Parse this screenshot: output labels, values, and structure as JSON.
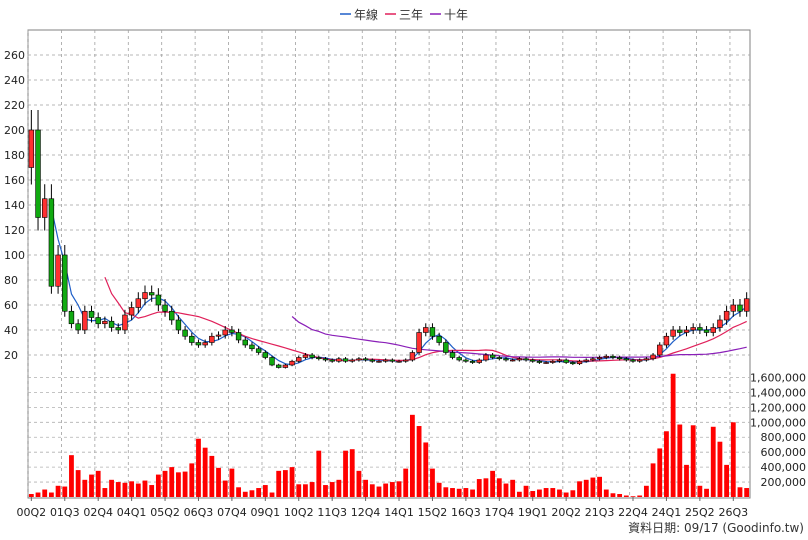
{
  "chart_data": {
    "type": "candlestick",
    "period": "quarterly",
    "legend": {
      "placement": "top-center",
      "items": [
        {
          "label": "年線",
          "color": "#1f5fc8"
        },
        {
          "label": "三年",
          "color": "#e0205a"
        },
        {
          "label": "十年",
          "color": "#8a1fb8"
        }
      ]
    },
    "price_axis": {
      "range": [
        0,
        280
      ],
      "ticks": [
        20,
        40,
        60,
        80,
        100,
        120,
        140,
        160,
        180,
        200,
        220,
        240,
        260
      ],
      "grid": true
    },
    "volume_axis": {
      "range": [
        0,
        1700000
      ],
      "ticks": [
        "200,000",
        "400,000",
        "600,000",
        "800,000",
        "1,000,000",
        "1,200,000",
        "1,400,000",
        "1,600,000"
      ],
      "tick_values": [
        200000,
        400000,
        600000,
        800000,
        1000000,
        1200000,
        1400000,
        1600000
      ]
    },
    "x_tick_labels": [
      "00Q2",
      "01Q3",
      "02Q4",
      "04Q1",
      "05Q2",
      "06Q3",
      "07Q4",
      "09Q1",
      "10Q2",
      "11Q3",
      "12Q4",
      "14Q1",
      "15Q2",
      "16Q3",
      "17Q4",
      "19Q1",
      "20Q2",
      "21Q3",
      "22Q4",
      "24Q1",
      "25Q2",
      "26Q3"
    ],
    "first_quarter": "00Q2",
    "closes": [
      200,
      130,
      145,
      75,
      100,
      55,
      45,
      40,
      55,
      50,
      45,
      47,
      42,
      40,
      52,
      58,
      65,
      70,
      68,
      60,
      55,
      48,
      40,
      35,
      30,
      28,
      30,
      35,
      36,
      40,
      38,
      32,
      28,
      25,
      22,
      18,
      12,
      10,
      12,
      15,
      18,
      20,
      18,
      17,
      16,
      15,
      17,
      15,
      16,
      17,
      16,
      15,
      15,
      16,
      15,
      15,
      16,
      22,
      38,
      42,
      35,
      30,
      22,
      18,
      16,
      15,
      14,
      16,
      20,
      18,
      17,
      16,
      16,
      17,
      16,
      15,
      14,
      14,
      15,
      16,
      14,
      13,
      15,
      16,
      17,
      18,
      19,
      18,
      17,
      16,
      15,
      16,
      17,
      20,
      28,
      35,
      40,
      38,
      40,
      42,
      40,
      38,
      42,
      48,
      55,
      60,
      55,
      65
    ],
    "volumes": [
      40000,
      60000,
      100000,
      60000,
      150000,
      140000,
      560000,
      360000,
      230000,
      300000,
      350000,
      120000,
      230000,
      200000,
      190000,
      210000,
      180000,
      220000,
      160000,
      300000,
      350000,
      400000,
      330000,
      340000,
      450000,
      780000,
      660000,
      550000,
      390000,
      220000,
      380000,
      130000,
      70000,
      90000,
      120000,
      160000,
      60000,
      350000,
      360000,
      400000,
      170000,
      170000,
      200000,
      620000,
      160000,
      200000,
      230000,
      620000,
      640000,
      350000,
      230000,
      170000,
      140000,
      180000,
      200000,
      210000,
      380000,
      1100000,
      950000,
      730000,
      380000,
      190000,
      130000,
      120000,
      110000,
      120000,
      100000,
      240000,
      250000,
      350000,
      250000,
      180000,
      230000,
      70000,
      150000,
      80000,
      100000,
      120000,
      120000,
      100000,
      60000,
      90000,
      210000,
      230000,
      260000,
      270000,
      100000,
      50000,
      40000,
      20000,
      10000,
      20000,
      150000,
      450000,
      650000,
      880000,
      1650000,
      970000,
      430000,
      960000,
      150000,
      110000,
      940000,
      740000,
      430000,
      1000000,
      130000,
      120000
    ]
  },
  "footer": {
    "source_text": "資料日期: 09/17   (Goodinfo.tw)"
  }
}
